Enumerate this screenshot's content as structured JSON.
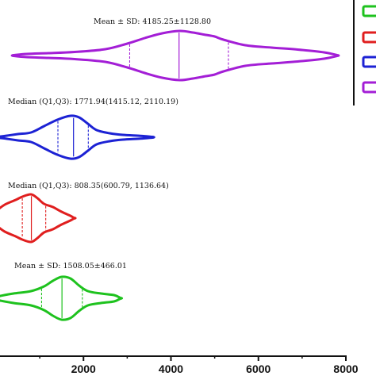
{
  "chart_data": {
    "type": "violin",
    "orientation": "horizontal",
    "xlim": [
      0,
      8000
    ],
    "x_ticks": [
      "2000",
      "4000",
      "6000",
      "8000"
    ],
    "title": "",
    "xlabel": "",
    "ylabel": "",
    "series": [
      {
        "key": "purple",
        "color": "#a31ed6",
        "annotation": "Mean ± SD: 4185.25±1128.80",
        "center_line": 4185.25,
        "dashed_lines": [
          3056.45,
          5314.05
        ],
        "profile": [
          [
            400,
            0.5
          ],
          [
            700,
            2
          ],
          [
            1200,
            3
          ],
          [
            1800,
            4.5
          ],
          [
            2500,
            8
          ],
          [
            3000,
            15
          ],
          [
            3400,
            22
          ],
          [
            3800,
            28
          ],
          [
            4200,
            31
          ],
          [
            4500,
            29
          ],
          [
            4800,
            26
          ],
          [
            5000,
            24
          ],
          [
            5200,
            20
          ],
          [
            5700,
            13
          ],
          [
            6300,
            10
          ],
          [
            6900,
            7.5
          ],
          [
            7500,
            4
          ],
          [
            7800,
            0.5
          ]
        ]
      },
      {
        "key": "blue",
        "color": "#1c22d4",
        "annotation": "Median (Q1,Q3): 1771.94(1415.12, 2110.19)",
        "center_line": 1771.94,
        "dashed_lines": [
          1415.12,
          2110.19
        ],
        "profile": [
          [
            20,
            0.5
          ],
          [
            250,
            2
          ],
          [
            500,
            4
          ],
          [
            800,
            6
          ],
          [
            1100,
            14
          ],
          [
            1400,
            22
          ],
          [
            1700,
            27
          ],
          [
            1900,
            25
          ],
          [
            2100,
            17
          ],
          [
            2300,
            9
          ],
          [
            2600,
            5
          ],
          [
            2900,
            3
          ],
          [
            3300,
            1.8
          ],
          [
            3580,
            0.5
          ]
        ]
      },
      {
        "key": "red",
        "color": "#e01e1e",
        "annotation": "Median (Q1,Q3): 808.35(600.79, 1136.64)",
        "center_line": 808.35,
        "dashed_lines": [
          600.79,
          1136.64
        ],
        "profile": [
          [
            -200,
            0.5
          ],
          [
            0,
            9
          ],
          [
            200,
            17
          ],
          [
            450,
            23
          ],
          [
            600,
            27
          ],
          [
            800,
            30
          ],
          [
            950,
            25
          ],
          [
            1100,
            18
          ],
          [
            1300,
            14
          ],
          [
            1500,
            8
          ],
          [
            1700,
            3
          ],
          [
            1780,
            0.5
          ]
        ]
      },
      {
        "key": "green",
        "color": "#1ec21e",
        "annotation": "Mean ± SD: 1508.05±466.01",
        "center_line": 1508.05,
        "dashed_lines": [
          1042.04,
          1974.06
        ],
        "profile": [
          [
            -100,
            0.5
          ],
          [
            100,
            3
          ],
          [
            400,
            6
          ],
          [
            800,
            9
          ],
          [
            1100,
            15
          ],
          [
            1300,
            22
          ],
          [
            1500,
            27
          ],
          [
            1700,
            25
          ],
          [
            1900,
            16
          ],
          [
            2100,
            9
          ],
          [
            2400,
            6
          ],
          [
            2700,
            4
          ],
          [
            2840,
            0.5
          ]
        ]
      }
    ],
    "legend": {
      "placement": "right",
      "colors": [
        "#1ec21e",
        "#e01e1e",
        "#1c22d4",
        "#a31ed6"
      ]
    }
  }
}
